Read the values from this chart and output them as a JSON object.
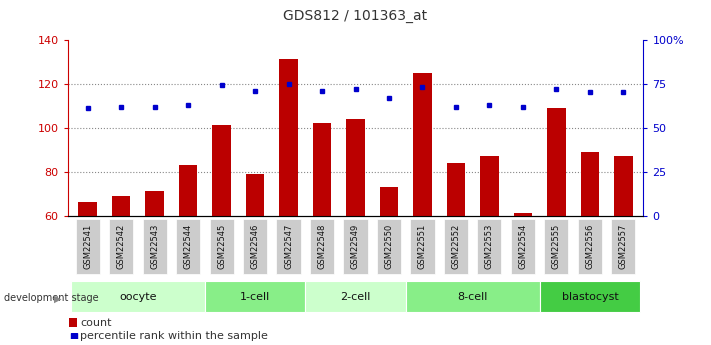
{
  "title": "GDS812 / 101363_at",
  "samples": [
    "GSM22541",
    "GSM22542",
    "GSM22543",
    "GSM22544",
    "GSM22545",
    "GSM22546",
    "GSM22547",
    "GSM22548",
    "GSM22549",
    "GSM22550",
    "GSM22551",
    "GSM22552",
    "GSM22553",
    "GSM22554",
    "GSM22555",
    "GSM22556",
    "GSM22557"
  ],
  "counts": [
    66,
    69,
    71,
    83,
    101,
    79,
    131,
    102,
    104,
    73,
    125,
    84,
    87,
    61,
    109,
    89,
    87
  ],
  "percentiles_pct": [
    61,
    62,
    62,
    63,
    74,
    71,
    75,
    71,
    72,
    67,
    73,
    62,
    63,
    62,
    72,
    70,
    70
  ],
  "ylim_left": [
    60,
    140
  ],
  "ylim_right": [
    0,
    100
  ],
  "yticks_left": [
    60,
    80,
    100,
    120,
    140
  ],
  "yticks_right": [
    0,
    25,
    50,
    75,
    100
  ],
  "yticklabels_right": [
    "0",
    "25",
    "50",
    "75",
    "100%"
  ],
  "bar_color": "#bb0000",
  "dot_color": "#0000cc",
  "bar_bottom": 60,
  "groups": [
    {
      "label": "oocyte",
      "start": 0,
      "end": 3,
      "color": "#ccffcc"
    },
    {
      "label": "1-cell",
      "start": 4,
      "end": 6,
      "color": "#88ee88"
    },
    {
      "label": "2-cell",
      "start": 7,
      "end": 9,
      "color": "#ccffcc"
    },
    {
      "label": "8-cell",
      "start": 10,
      "end": 13,
      "color": "#88ee88"
    },
    {
      "label": "blastocyst",
      "start": 14,
      "end": 16,
      "color": "#44cc44"
    }
  ],
  "group_label": "development stage",
  "legend_count_label": "count",
  "legend_pct_label": "percentile rank within the sample",
  "bg_color": "#ffffff",
  "grid_color": "#888888",
  "tick_color_left": "#cc0000",
  "tick_color_right": "#0000cc",
  "sample_bg_color": "#cccccc",
  "title_fontsize": 10,
  "axis_fontsize": 8,
  "group_fontsize": 8,
  "legend_fontsize": 8,
  "xtick_fontsize": 6
}
